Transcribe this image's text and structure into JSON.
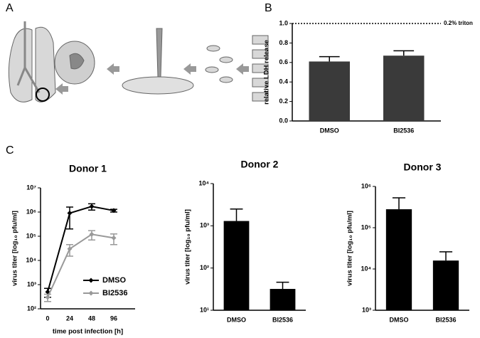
{
  "panel_labels": [
    "A",
    "B",
    "C"
  ],
  "chart_data": [
    {
      "type": "bar",
      "y_label": "relative LDH release",
      "categories": [
        "DMSO",
        "BI2536"
      ],
      "values": [
        0.61,
        0.67
      ],
      "errors": [
        0.05,
        0.05
      ],
      "color": "#3a3a3a",
      "ylim": [
        0,
        1
      ],
      "yticks": [
        {
          "value": 0,
          "label": "0.0"
        },
        {
          "value": 0.2,
          "label": "0.2"
        },
        {
          "value": 0.4,
          "label": "0.4"
        },
        {
          "value": 0.6,
          "label": "0.6"
        },
        {
          "value": 0.8,
          "label": "0.8"
        },
        {
          "value": 1,
          "label": "1.0"
        }
      ],
      "reference_line": {
        "value": 1,
        "label": "0.2% triton"
      }
    },
    {
      "type": "line",
      "title": "Donor 1",
      "x_label": "time post infection [h]",
      "y_label": "virus titer [log₁₀ pfu/ml]",
      "log_y": true,
      "categories": [
        "0",
        "24",
        "48",
        "96"
      ],
      "series": [
        {
          "name": "DMSO",
          "color": "#000000",
          "values": [
            500,
            900000,
            1700000,
            1150000
          ],
          "errors": [
            200,
            700000,
            500000,
            150000
          ]
        },
        {
          "name": "BI2536",
          "color": "#999999",
          "values": [
            300,
            30000,
            120000,
            85000
          ],
          "errors": [
            100,
            15000,
            50000,
            40000
          ]
        }
      ],
      "ylim": [
        100,
        10000000
      ],
      "yticks": [
        {
          "value": 100,
          "label": "10²"
        },
        {
          "value": 1000,
          "label": "10³"
        },
        {
          "value": 10000,
          "label": "10⁴"
        },
        {
          "value": 100000,
          "label": "10⁵"
        },
        {
          "value": 1000000,
          "label": "10⁶"
        },
        {
          "value": 10000000,
          "label": "10⁷"
        }
      ],
      "legend": "lower right"
    },
    {
      "type": "bar",
      "title": "Donor 2",
      "y_label": "virus titer [log₁₀ pfu/ml]",
      "log_y": true,
      "categories": [
        "DMSO",
        "BI2536"
      ],
      "values": [
        1300,
        32
      ],
      "errors": [
        1200,
        14
      ],
      "color": "#000000",
      "ylim": [
        10,
        10000
      ],
      "yticks": [
        {
          "value": 10,
          "label": "10¹"
        },
        {
          "value": 100,
          "label": "10²"
        },
        {
          "value": 1000,
          "label": "10³"
        },
        {
          "value": 10000,
          "label": "10⁴"
        }
      ]
    },
    {
      "type": "bar",
      "title": "Donor 3",
      "y_label": "virus titer [log₁₀ pfu/ml]",
      "log_y": true,
      "categories": [
        "DMSO",
        "BI2536"
      ],
      "values": [
        280000,
        16000
      ],
      "errors": [
        250000,
        10000
      ],
      "color": "#000000",
      "ylim": [
        1000,
        1000000
      ],
      "yticks": [
        {
          "value": 1000,
          "label": "10³"
        },
        {
          "value": 10000,
          "label": "10⁴"
        },
        {
          "value": 100000,
          "label": "10⁵"
        },
        {
          "value": 1000000,
          "label": "10⁶"
        }
      ]
    }
  ]
}
